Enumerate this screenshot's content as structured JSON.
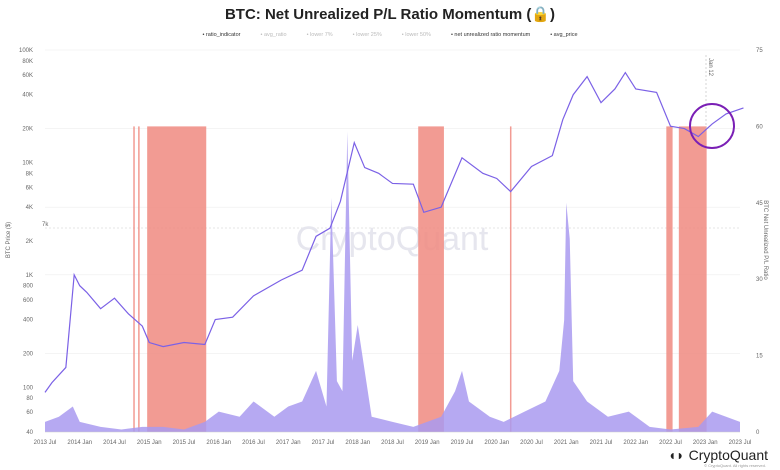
{
  "title": "BTC: Net Unrealized P/L Ratio Momentum",
  "legend": [
    {
      "label": "ratio_indicator",
      "faded": false
    },
    {
      "label": "avg_ratio",
      "faded": true
    },
    {
      "label": "lower 7%",
      "faded": true
    },
    {
      "label": "lower 25%",
      "faded": true
    },
    {
      "label": "lower 50%",
      "faded": true
    },
    {
      "label": "net unrealized ratio momentum",
      "faded": false
    },
    {
      "label": "avg_price",
      "faded": false
    }
  ],
  "watermark": "CryptoQuant",
  "brand": "CryptoQuant",
  "copyright": "© CryptoQuant. All rights reserved.",
  "annotation": "Jan 12",
  "colors": {
    "price": "#7b61e6",
    "ratio": "#a99af0",
    "band": "#f08a80",
    "circle": "#7a1fb5"
  },
  "chart_data": {
    "type": "line",
    "title": "BTC: Net Unrealized P/L Ratio Momentum",
    "ylabel_left": "BTC Price ($)",
    "ylabel_right": "BTC Net Unrealized P/L Ratio",
    "ylim_left": [
      40,
      100000
    ],
    "ylim_right": [
      0,
      75
    ],
    "left_ticks": [
      "100K",
      "80K",
      "60K",
      "40K",
      "20K",
      "10K",
      "8K",
      "6K",
      "4K",
      "2K",
      "1K",
      "800",
      "600",
      "400",
      "200",
      "100",
      "80",
      "60",
      "40"
    ],
    "left_tick_values": [
      100000,
      80000,
      60000,
      40000,
      20000,
      10000,
      8000,
      6000,
      4000,
      2000,
      1000,
      800,
      600,
      400,
      200,
      100,
      80,
      60,
      40
    ],
    "right_ticks": [
      "75",
      "60",
      "45",
      "30",
      "15",
      "0"
    ],
    "right_tick_values": [
      75,
      60,
      45,
      30,
      15,
      0
    ],
    "x_ticks": [
      "2013 Jul",
      "2014 Jan",
      "2014 Jul",
      "2015 Jan",
      "2015 Jul",
      "2016 Jan",
      "2016 Jul",
      "2017 Jan",
      "2017 Jul",
      "2018 Jan",
      "2018 Jul",
      "2019 Jan",
      "2019 Jul",
      "2020 Jan",
      "2020 Jul",
      "2021 Jan",
      "2021 Jul",
      "2022 Jan",
      "2022 Jul",
      "2023 Jan",
      "2023 Jul"
    ],
    "xlim": [
      2013.5,
      2023.5
    ],
    "reference_line_label": "7k",
    "price_series": {
      "name": "avg_price",
      "x": [
        2013.5,
        2013.6,
        2013.8,
        2013.92,
        2014.0,
        2014.1,
        2014.3,
        2014.5,
        2014.7,
        2014.9,
        2015.0,
        2015.2,
        2015.5,
        2015.8,
        2015.95,
        2016.2,
        2016.5,
        2016.9,
        2017.2,
        2017.4,
        2017.6,
        2017.75,
        2017.95,
        2018.1,
        2018.3,
        2018.5,
        2018.8,
        2018.95,
        2019.2,
        2019.5,
        2019.8,
        2020.0,
        2020.2,
        2020.5,
        2020.8,
        2020.95,
        2021.1,
        2021.3,
        2021.5,
        2021.7,
        2021.85,
        2022.0,
        2022.3,
        2022.5,
        2022.7,
        2022.9,
        2023.1,
        2023.3,
        2023.55
      ],
      "y": [
        90,
        110,
        150,
        1000,
        800,
        700,
        500,
        620,
        450,
        350,
        250,
        230,
        250,
        240,
        400,
        420,
        650,
        900,
        1100,
        2200,
        2600,
        4500,
        15000,
        9000,
        8000,
        6500,
        6400,
        3600,
        4000,
        11000,
        8000,
        7200,
        5500,
        9200,
        11500,
        24000,
        40000,
        58000,
        34000,
        45000,
        63000,
        45000,
        42000,
        21000,
        20000,
        17000,
        22000,
        27000,
        30500
      ]
    },
    "ratio_series": {
      "name": "net unrealized ratio momentum",
      "x": [
        2013.5,
        2013.7,
        2013.9,
        2014.0,
        2014.3,
        2014.6,
        2014.9,
        2015.2,
        2015.5,
        2015.8,
        2016.0,
        2016.3,
        2016.5,
        2016.8,
        2017.0,
        2017.2,
        2017.4,
        2017.55,
        2017.62,
        2017.7,
        2017.78,
        2017.85,
        2017.92,
        2018.0,
        2018.2,
        2018.5,
        2018.8,
        2019.2,
        2019.4,
        2019.5,
        2019.6,
        2019.9,
        2020.1,
        2020.4,
        2020.7,
        2020.9,
        2020.97,
        2021.0,
        2021.05,
        2021.1,
        2021.3,
        2021.6,
        2021.9,
        2022.2,
        2022.5,
        2022.9,
        2023.1,
        2023.3,
        2023.5
      ],
      "y": [
        2,
        3,
        5,
        2,
        1,
        0.5,
        1,
        1,
        0.5,
        2,
        4,
        3,
        6,
        3,
        5,
        6,
        12,
        5,
        46,
        10,
        8,
        59,
        14,
        21,
        3,
        2,
        1,
        3,
        8,
        12,
        6,
        3,
        2,
        4,
        6,
        12,
        22,
        45,
        38,
        10,
        6,
        3,
        4,
        1,
        0.5,
        1,
        4,
        3,
        2
      ]
    },
    "bands": [
      [
        2014.77,
        2014.79
      ],
      [
        2014.84,
        2014.86
      ],
      [
        2014.97,
        2015.82
      ],
      [
        2018.87,
        2019.24
      ],
      [
        2020.19,
        2020.21
      ],
      [
        2022.44,
        2022.53
      ],
      [
        2022.62,
        2023.02
      ]
    ],
    "band_top_ratio": 60
  }
}
